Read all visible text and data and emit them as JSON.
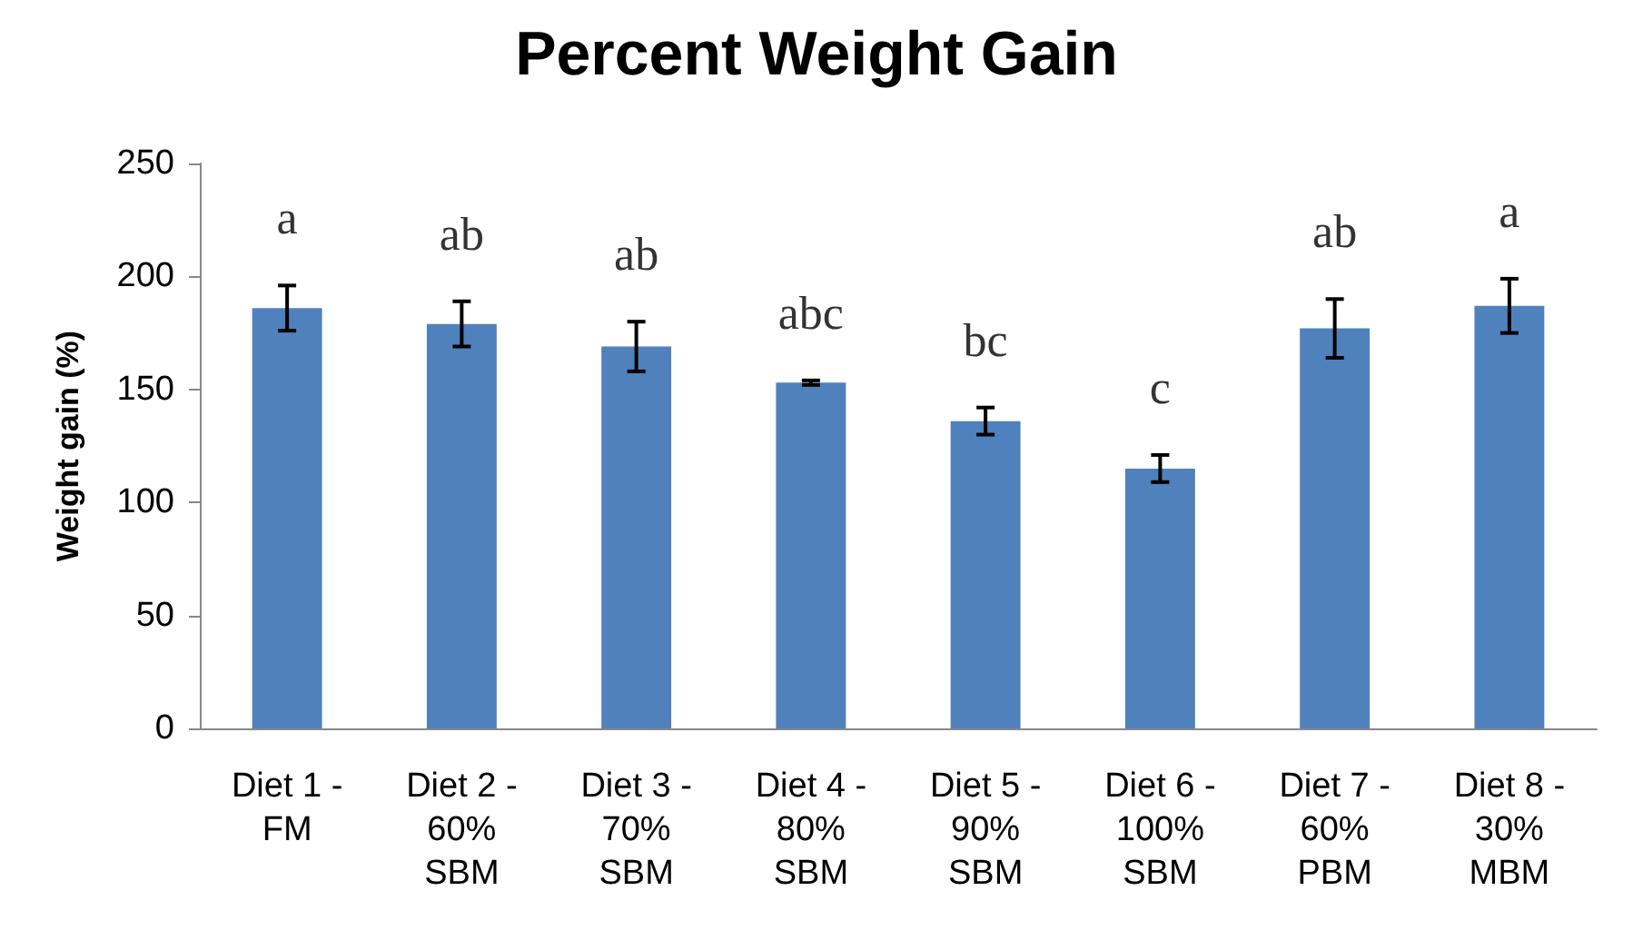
{
  "chart_data": {
    "type": "bar",
    "title": "Percent Weight Gain",
    "ylabel": "Weight gain (%)",
    "categories": [
      "Diet 1 -\nFM",
      "Diet 2 -\n60%\nSBM",
      "Diet 3 -\n70%\nSBM",
      "Diet 4 -\n80%\nSBM",
      "Diet 5 -\n90%\nSBM",
      "Diet 6 -\n100%\nSBM",
      "Diet 7 -\n60%\nPBM",
      "Diet 8 -\n30%\nMBM"
    ],
    "values": [
      186,
      179,
      169,
      153,
      136,
      115,
      177,
      187
    ],
    "errors": [
      10,
      10,
      11,
      1,
      6,
      6,
      13,
      12
    ],
    "color": "#4f81bd",
    "ylim": [
      0,
      250
    ],
    "yticks": [
      0,
      50,
      100,
      150,
      200,
      250
    ],
    "grid": false,
    "annotations": [
      "a",
      "ab",
      "ab",
      "abc",
      "bc",
      "c",
      "ab",
      "a"
    ]
  }
}
